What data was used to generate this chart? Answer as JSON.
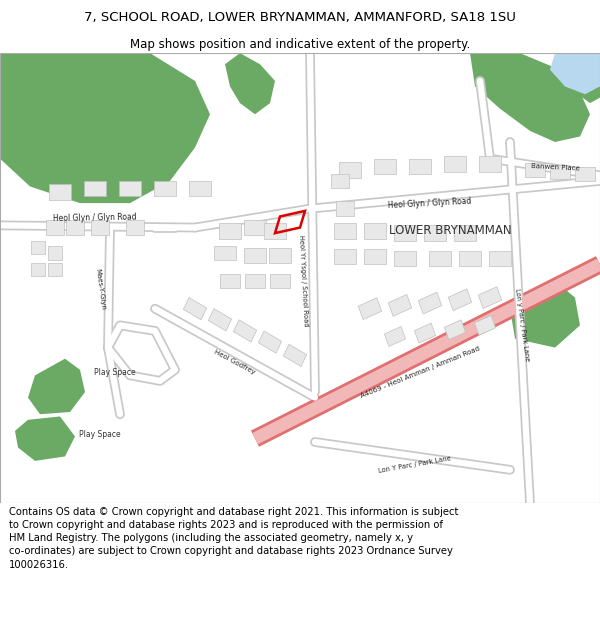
{
  "title_line1": "7, SCHOOL ROAD, LOWER BRYNAMMAN, AMMANFORD, SA18 1SU",
  "title_line2": "Map shows position and indicative extent of the property.",
  "title_fontsize": 9.5,
  "subtitle_fontsize": 8.5,
  "footer_text": "Contains OS data © Crown copyright and database right 2021. This information is subject to Crown copyright and database rights 2023 and is reproduced with the permission of HM Land Registry. The polygons (including the associated geometry, namely x, y co-ordinates) are subject to Crown copyright and database rights 2023 Ordnance Survey 100026316.",
  "footer_fontsize": 7.2,
  "bg_color": "#ffffff",
  "map_bg": "#ffffff",
  "road_fill": "#ffffff",
  "road_edge": "#c8c8c8",
  "major_road_fill": "#f2b8b8",
  "major_road_edge": "#e07070",
  "building_color": "#e8e8e8",
  "building_edge": "#c0c0c0",
  "green_color": "#6aaa64",
  "water_color": "#b8d8f0",
  "plot_color": "#dd0000",
  "text_color": "#000000",
  "title_color": "#000000",
  "map_border_color": "#aaaaaa"
}
